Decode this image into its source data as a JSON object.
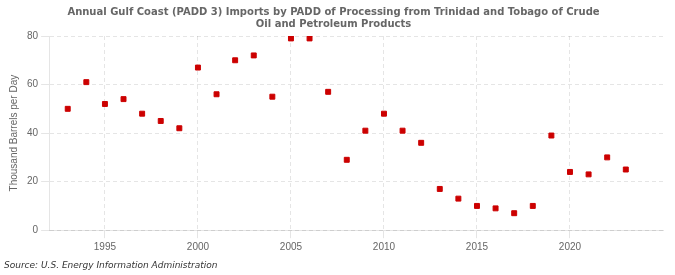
{
  "chart_data": {
    "type": "scatter",
    "title": "Annual Gulf Coast (PADD 3) Imports by PADD of Processing from Trinidad and Tobago of Crude\nOil and Petroleum Products",
    "ylabel": "Thousand Barrels per Day",
    "source": "Source: U.S. Energy Information Administration",
    "x": [
      1993,
      1994,
      1995,
      1996,
      1997,
      1998,
      1999,
      2000,
      2001,
      2002,
      2003,
      2004,
      2005,
      2006,
      2007,
      2008,
      2009,
      2010,
      2011,
      2012,
      2013,
      2014,
      2015,
      2016,
      2017,
      2018,
      2019,
      2020,
      2021,
      2022,
      2023
    ],
    "values": [
      50,
      61,
      52,
      54,
      48,
      45,
      42,
      67,
      56,
      70,
      72,
      55,
      79,
      79,
      57,
      29,
      41,
      48,
      41,
      36,
      17,
      13,
      10,
      9,
      7,
      10,
      39,
      24,
      23,
      30,
      25
    ],
    "color": "#cc0000",
    "marker": "square",
    "xlim": [
      1992,
      2025
    ],
    "ylim": [
      0,
      80
    ],
    "xticks": [
      1995,
      2000,
      2005,
      2010,
      2015,
      2020
    ],
    "yticks": [
      0,
      20,
      40,
      60,
      80
    ],
    "grid": true
  }
}
